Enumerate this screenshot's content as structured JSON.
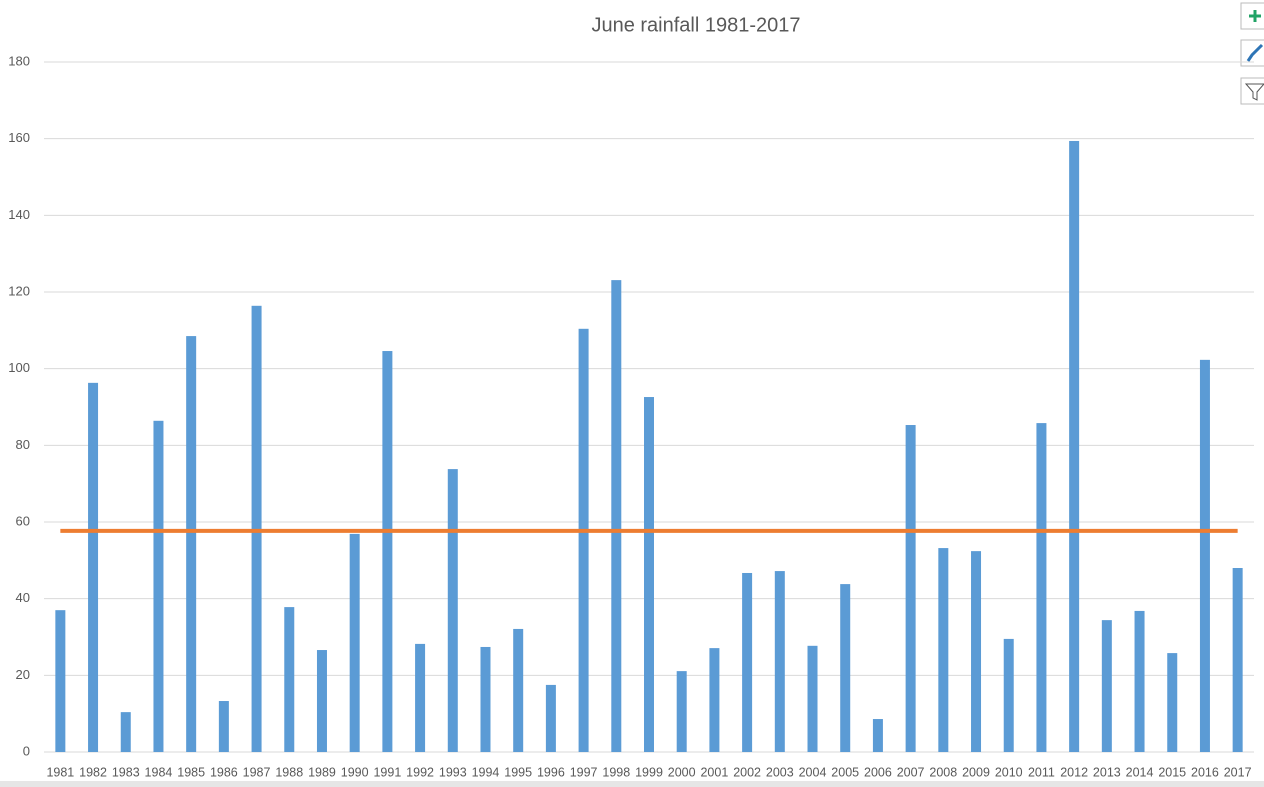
{
  "chart_data": {
    "type": "bar",
    "title": "June rainfall 1981-2017",
    "categories": [
      "1981",
      "1982",
      "1983",
      "1984",
      "1985",
      "1986",
      "1987",
      "1988",
      "1989",
      "1990",
      "1991",
      "1992",
      "1993",
      "1994",
      "1995",
      "1996",
      "1997",
      "1998",
      "1999",
      "2000",
      "2001",
      "2002",
      "2003",
      "2004",
      "2005",
      "2006",
      "2007",
      "2008",
      "2009",
      "2010",
      "2011",
      "2012",
      "2013",
      "2014",
      "2015",
      "2016",
      "2017"
    ],
    "series": [
      {
        "type": "bar",
        "color": "#5b9bd5",
        "values": [
          37.0,
          96.3,
          10.4,
          86.4,
          108.5,
          13.3,
          116.4,
          37.8,
          26.6,
          56.9,
          104.6,
          28.2,
          73.8,
          27.4,
          32.1,
          17.5,
          110.4,
          123.1,
          92.6,
          21.1,
          27.1,
          46.7,
          47.2,
          27.7,
          43.8,
          8.6,
          85.3,
          53.2,
          52.4,
          29.5,
          85.8,
          159.4,
          34.4,
          36.8,
          25.8,
          102.3,
          48.0
        ]
      },
      {
        "type": "line",
        "color": "#ed7d31",
        "values": [
          57.7,
          57.7,
          57.7,
          57.7,
          57.7,
          57.7,
          57.7,
          57.7,
          57.7,
          57.7,
          57.7,
          57.7,
          57.7,
          57.7,
          57.7,
          57.7,
          57.7,
          57.7,
          57.7,
          57.7,
          57.7,
          57.7,
          57.7,
          57.7,
          57.7,
          57.7,
          57.7,
          57.7,
          57.7,
          57.7,
          57.7,
          57.7,
          57.7,
          57.7,
          57.7,
          57.7,
          57.7
        ]
      }
    ],
    "ylim": [
      0,
      180
    ],
    "yticks": [
      0,
      20,
      40,
      60,
      80,
      100,
      120,
      140,
      160,
      180
    ],
    "grid": true
  }
}
